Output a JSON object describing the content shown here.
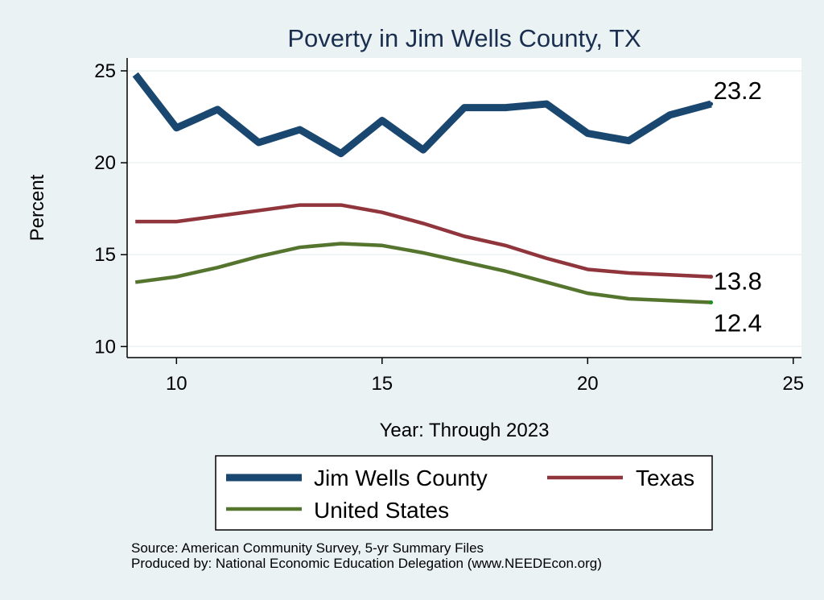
{
  "chart_data": {
    "type": "line",
    "title": "Poverty in Jim Wells County, TX",
    "xlabel": "Year: Through 2023",
    "ylabel": "Percent",
    "xlim": [
      8.8,
      25.2
    ],
    "ylim": [
      9.4,
      25.7
    ],
    "xticks": [
      10,
      15,
      20,
      25
    ],
    "yticks": [
      10,
      15,
      20,
      25
    ],
    "x": [
      9,
      10,
      11,
      12,
      13,
      14,
      15,
      16,
      17,
      18,
      19,
      20,
      21,
      22,
      23
    ],
    "series": [
      {
        "name": "Jim Wells County",
        "color": "#1a476f",
        "values": [
          24.8,
          21.9,
          22.9,
          21.1,
          21.8,
          20.5,
          22.3,
          20.7,
          23.0,
          23.0,
          23.2,
          21.6,
          21.2,
          22.6,
          23.2
        ],
        "end_label": "23.2"
      },
      {
        "name": "Texas",
        "color": "#90353b",
        "values": [
          16.8,
          16.8,
          17.1,
          17.4,
          17.7,
          17.7,
          17.3,
          16.7,
          16.0,
          15.5,
          14.8,
          14.2,
          14.0,
          13.9,
          13.8
        ],
        "end_label": "13.8"
      },
      {
        "name": "United States",
        "color": "#55752f",
        "values": [
          13.5,
          13.8,
          14.3,
          14.9,
          15.4,
          15.6,
          15.5,
          15.1,
          14.6,
          14.1,
          13.5,
          12.9,
          12.6,
          12.5,
          12.4
        ],
        "end_label": "12.4"
      }
    ],
    "legend": "bottom"
  },
  "source_lines": [
    "Source: American Community Survey, 5-yr Summary Files",
    "Produced by: National Economic Education Delegation (www.NEEDEcon.org)"
  ]
}
